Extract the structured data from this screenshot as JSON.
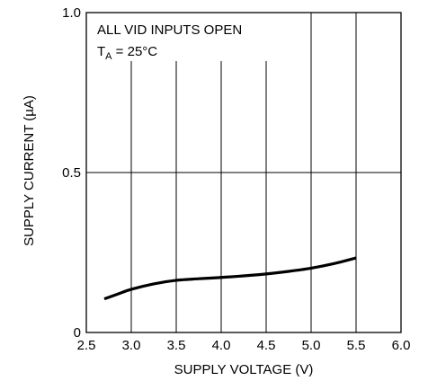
{
  "chart_data": {
    "type": "line",
    "title": "",
    "xlabel": "SUPPLY VOLTAGE (V)",
    "ylabel": "SUPPLY CURRENT (µA)",
    "xlim": [
      2.5,
      6.0
    ],
    "ylim": [
      0,
      1.0
    ],
    "x_ticks": [
      "2.5",
      "3.0",
      "3.5",
      "4.0",
      "4.5",
      "5.0",
      "5.5",
      "6.0"
    ],
    "y_ticks": [
      "0",
      "0.5",
      "1.0"
    ],
    "grid": true,
    "annotations": {
      "line1": "ALL VID INPUTS OPEN",
      "line2_main": "T",
      "line2_sub": "A",
      "line2_rest": " = 25°C"
    },
    "series": [
      {
        "x": [
          2.7,
          2.85,
          3.0,
          3.25,
          3.5,
          3.75,
          4.0,
          4.25,
          4.5,
          4.75,
          5.0,
          5.25,
          5.5
        ],
        "y": [
          0.105,
          0.12,
          0.135,
          0.152,
          0.163,
          0.168,
          0.172,
          0.177,
          0.183,
          0.191,
          0.201,
          0.215,
          0.233
        ]
      }
    ]
  }
}
